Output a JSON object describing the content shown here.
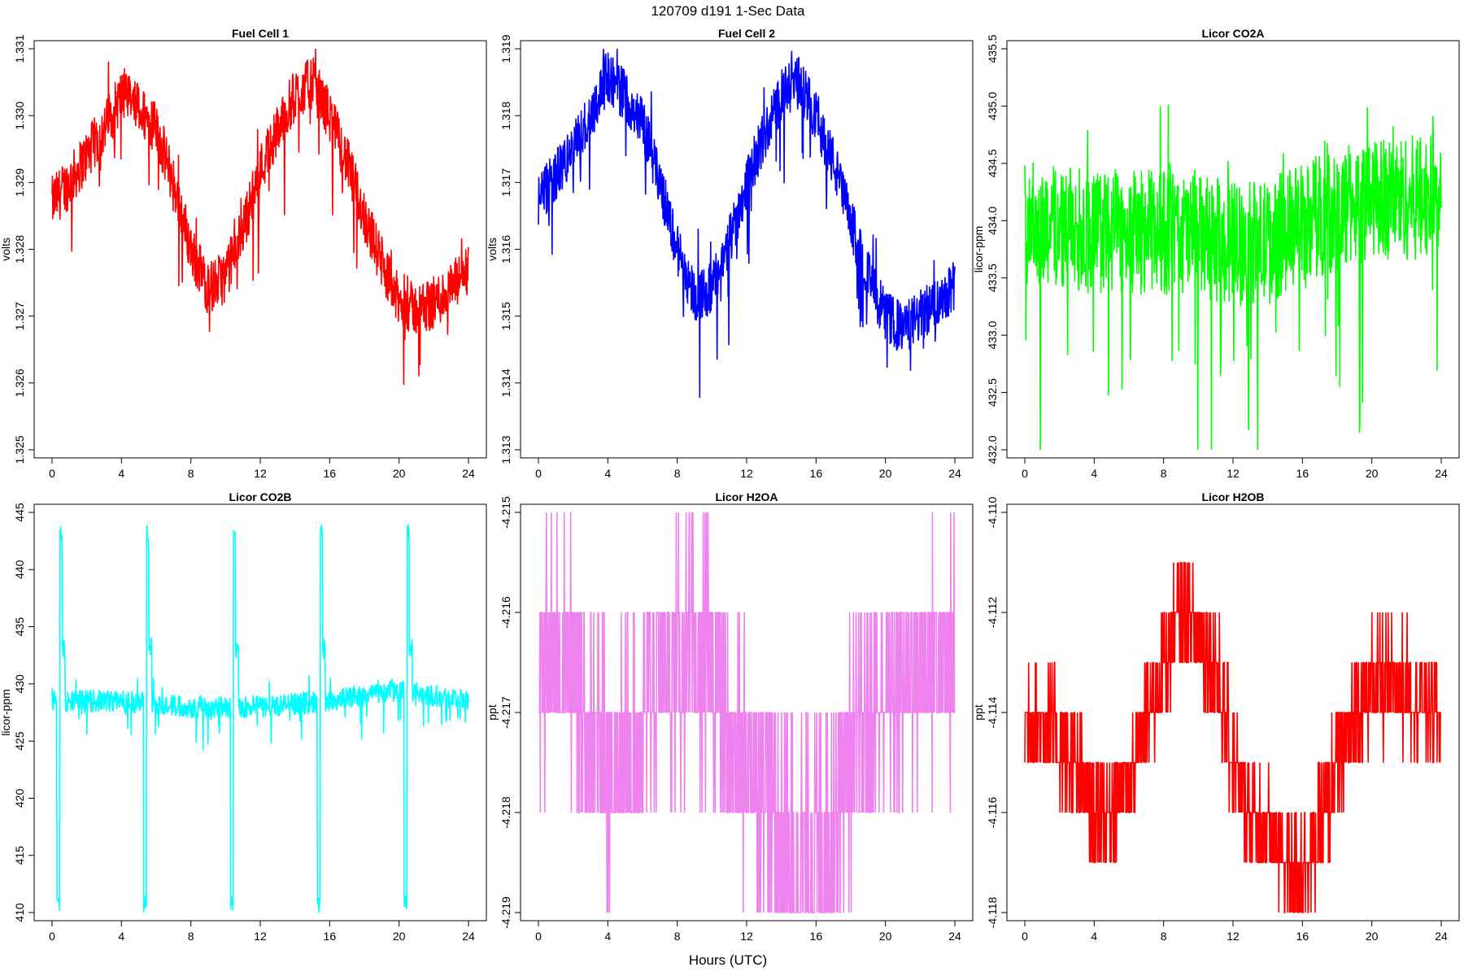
{
  "figure": {
    "title": "120709   d191   1-Sec Data",
    "xlabel": "Hours (UTC)"
  },
  "chart_data": [
    {
      "type": "line",
      "title": "Fuel Cell 1",
      "ylabel": "volts",
      "xlabel": "Hours (UTC)",
      "color": "#ff0000",
      "xlim": [
        0,
        24
      ],
      "ylim": [
        1.325,
        1.331
      ],
      "xticks": [
        0,
        4,
        8,
        12,
        16,
        20,
        24
      ],
      "yticks": [
        "1.325",
        "1.326",
        "1.327",
        "1.328",
        "1.329",
        "1.330",
        "1.331"
      ],
      "x": [
        0,
        1,
        2,
        3,
        4,
        5,
        6,
        7,
        8,
        9,
        10,
        11,
        12,
        13,
        14,
        15,
        16,
        17,
        18,
        19,
        20,
        21,
        22,
        23,
        24
      ],
      "center": [
        1.3287,
        1.329,
        1.3294,
        1.3298,
        1.3303,
        1.3301,
        1.3298,
        1.329,
        1.328,
        1.3274,
        1.3276,
        1.3283,
        1.3292,
        1.3298,
        1.3303,
        1.3305,
        1.33,
        1.3293,
        1.3285,
        1.3278,
        1.3272,
        1.3271,
        1.3272,
        1.3274,
        1.3277
      ],
      "spread": 0.0004
    },
    {
      "type": "line",
      "title": "Fuel Cell 2",
      "ylabel": "volts",
      "xlabel": "Hours (UTC)",
      "color": "#0000ff",
      "xlim": [
        0,
        24
      ],
      "ylim": [
        1.313,
        1.319
      ],
      "xticks": [
        0,
        4,
        8,
        12,
        16,
        20,
        24
      ],
      "yticks": [
        "1.313",
        "1.314",
        "1.315",
        "1.316",
        "1.317",
        "1.318",
        "1.319"
      ],
      "x": [
        0,
        1,
        2,
        3,
        4,
        5,
        6,
        7,
        8,
        9,
        10,
        11,
        12,
        13,
        14,
        15,
        16,
        17,
        18,
        19,
        20,
        21,
        22,
        23,
        24
      ],
      "center": [
        1.3167,
        1.3171,
        1.3175,
        1.318,
        1.3186,
        1.3183,
        1.3179,
        1.317,
        1.316,
        1.3153,
        1.3154,
        1.3161,
        1.317,
        1.3177,
        1.3183,
        1.3185,
        1.318,
        1.3173,
        1.3164,
        1.3156,
        1.315,
        1.3148,
        1.315,
        1.3152,
        1.3155
      ],
      "spread": 0.0004
    },
    {
      "type": "line",
      "title": "Licor CO2A",
      "ylabel": "licor-ppm",
      "xlabel": "Hours (UTC)",
      "color": "#00ff00",
      "xlim": [
        0,
        24
      ],
      "ylim": [
        432.0,
        435.5
      ],
      "xticks": [
        0,
        4,
        8,
        12,
        16,
        20,
        24
      ],
      "yticks": [
        "432.0",
        "432.5",
        "433.0",
        "433.5",
        "434.0",
        "434.5",
        "435.0",
        "435.5"
      ],
      "x": [
        0,
        4,
        8,
        12,
        14,
        16,
        20,
        24
      ],
      "center": [
        434.0,
        433.9,
        433.9,
        433.8,
        433.8,
        434.0,
        434.2,
        434.2
      ],
      "spread": 0.55
    },
    {
      "type": "line",
      "title": "Licor CO2B",
      "ylabel": "licor-ppm",
      "xlabel": "Hours (UTC)",
      "color": "#00ffff",
      "xlim": [
        0,
        24
      ],
      "ylim": [
        410,
        445
      ],
      "xticks": [
        0,
        4,
        8,
        12,
        16,
        20,
        24
      ],
      "yticks": [
        "410",
        "415",
        "420",
        "425",
        "430",
        "435",
        "440",
        "445"
      ],
      "x": [
        0,
        4,
        8,
        12,
        16,
        20,
        24
      ],
      "center": [
        428.5,
        428.5,
        428,
        428,
        428.5,
        429.5,
        428.5
      ],
      "spread": 1.0,
      "calibration_hours": [
        0.5,
        5.5,
        10.5,
        15.5,
        20.5
      ],
      "calibration_range": [
        410,
        444
      ]
    },
    {
      "type": "line",
      "title": "Licor H2OA",
      "ylabel": "ppt",
      "xlabel": "Hours (UTC)",
      "color": "#ee82ee",
      "xlim": [
        0,
        24
      ],
      "ylim": [
        -4.219,
        -4.215
      ],
      "xticks": [
        0,
        4,
        8,
        12,
        16,
        20,
        24
      ],
      "yticks": [
        "-4.219",
        "-4.218",
        "-4.217",
        "-4.216",
        "-4.215"
      ],
      "step": 0.001,
      "x": [
        0,
        2,
        3,
        4,
        6,
        7,
        10,
        11,
        13,
        14,
        16,
        17,
        18,
        19,
        20,
        22,
        24
      ],
      "center": [
        -4.2165,
        -4.2165,
        -4.2172,
        -4.2175,
        -4.2173,
        -4.2165,
        -4.2165,
        -4.2175,
        -4.2175,
        -4.2184,
        -4.2184,
        -4.2178,
        -4.2175,
        -4.2172,
        -4.2168,
        -4.2165,
        -4.2165
      ]
    },
    {
      "type": "line",
      "title": "Licor H2OB",
      "ylabel": "ppt",
      "xlabel": "Hours (UTC)",
      "color": "#ff0000",
      "xlim": [
        0,
        24
      ],
      "ylim": [
        -4.118,
        -4.11
      ],
      "xticks": [
        0,
        4,
        8,
        12,
        16,
        20,
        24
      ],
      "yticks": [
        "-4.118",
        "-4.116",
        "-4.114",
        "-4.112",
        "-4.110"
      ],
      "step": 0.001,
      "x": [
        0,
        2,
        4,
        6,
        8,
        9,
        10,
        11,
        12,
        13,
        15,
        16,
        17,
        18,
        19,
        20,
        22,
        24
      ],
      "center": [
        -4.114,
        -4.1145,
        -4.116,
        -4.1155,
        -4.113,
        -4.112,
        -4.1125,
        -4.113,
        -4.115,
        -4.116,
        -4.117,
        -4.117,
        -4.1165,
        -4.115,
        -4.114,
        -4.1135,
        -4.1135,
        -4.114
      ]
    }
  ]
}
